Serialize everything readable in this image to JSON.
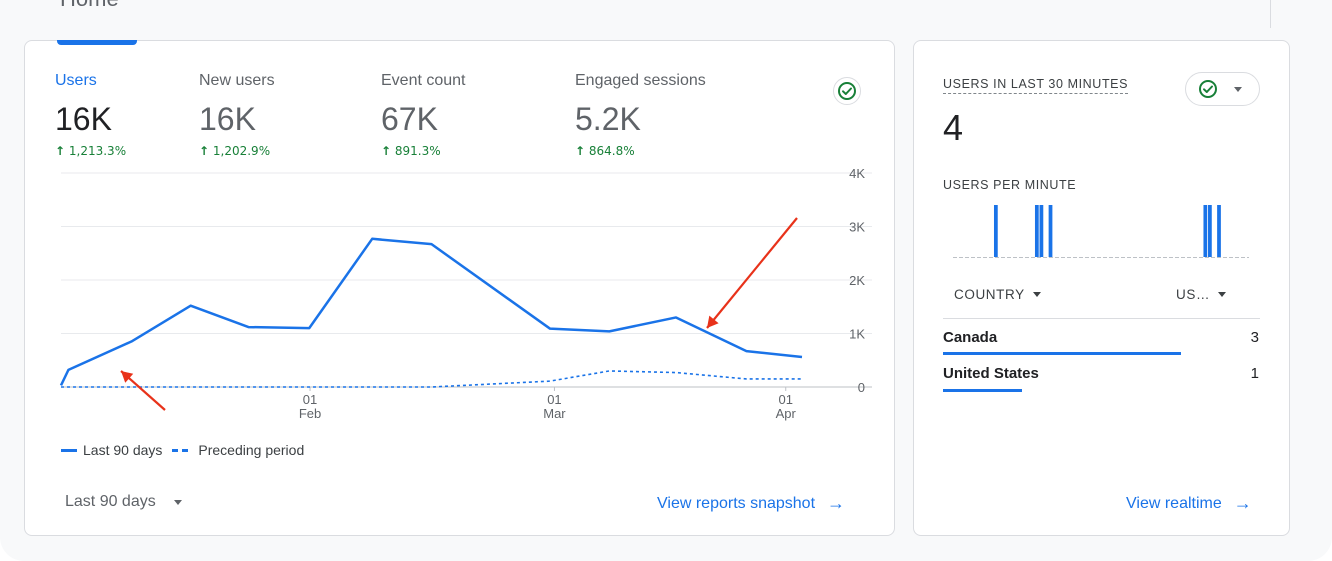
{
  "page_title_cut": "Home",
  "metrics": [
    {
      "label": "Users",
      "value": "16K",
      "change": "1,213.3%",
      "active": true
    },
    {
      "label": "New users",
      "value": "16K",
      "change": "1,202.9%"
    },
    {
      "label": "Event count",
      "value": "67K",
      "change": "891.3%"
    },
    {
      "label": "Engaged sessions",
      "value": "5.2K",
      "change": "864.8%"
    }
  ],
  "chart_data": {
    "type": "line",
    "y_ticks": [
      "4K",
      "3K",
      "2K",
      "1K",
      "0"
    ],
    "ylim": [
      0,
      4000
    ],
    "x_ticks": [
      {
        "day": "01",
        "month": "Feb"
      },
      {
        "day": "01",
        "month": "Mar"
      },
      {
        "day": "01",
        "month": "Apr"
      }
    ],
    "series": [
      {
        "name": "Last 90 days",
        "style": "solid",
        "values": [
          30,
          320,
          850,
          1520,
          1120,
          1100,
          2770,
          2670,
          1090,
          1040,
          1300,
          670,
          560
        ]
      },
      {
        "name": "Preceding period",
        "style": "dashed",
        "values": [
          0,
          0,
          0,
          0,
          0,
          0,
          0,
          0,
          110,
          300,
          270,
          150,
          150
        ]
      }
    ],
    "grid": true
  },
  "legend": {
    "last90": "Last 90 days",
    "preceding": "Preceding period"
  },
  "date_range": "Last 90 days",
  "view_reports": "View reports snapshot",
  "realtime": {
    "users_label": "USERS IN LAST 30 MINUTES",
    "users_value": "4",
    "per_minute_label": "USERS PER MINUTE",
    "per_minute_values": [
      0,
      0,
      0,
      0,
      0,
      0,
      0,
      0,
      0,
      1,
      0,
      0,
      0,
      0,
      0,
      0,
      0,
      0,
      1,
      1,
      0,
      1,
      0,
      0,
      0,
      0,
      0,
      0,
      0,
      0,
      0,
      0,
      0,
      0,
      0,
      0,
      0,
      0,
      0,
      0,
      0,
      0,
      0,
      0,
      0,
      0,
      0,
      0,
      0,
      0,
      0,
      0,
      0,
      0,
      0,
      1,
      1,
      0,
      1,
      0,
      0,
      0,
      0,
      0,
      0
    ],
    "country_header": "COUNTRY",
    "users_header": "US…",
    "rows": [
      {
        "name": "Canada",
        "value": "3",
        "fraction": 1.0
      },
      {
        "name": "United States",
        "value": "1",
        "fraction": 0.33
      }
    ],
    "view_realtime": "View realtime"
  },
  "colors": {
    "accent": "#1a73e8",
    "positive": "#188038",
    "annotation_arrow": "#e8321a"
  }
}
